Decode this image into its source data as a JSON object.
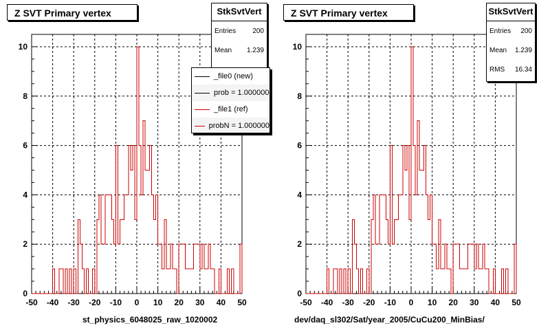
{
  "chart_data": [
    {
      "type": "histogram",
      "title": "Z SVT Primary vertex",
      "xlabel": "st_physics_6048025_raw_1020002",
      "ylabel": "",
      "xlim": [
        -50,
        50
      ],
      "ylim": [
        0,
        10.5
      ],
      "xticks": [
        -50,
        -40,
        -30,
        -20,
        -10,
        0,
        10,
        20,
        30,
        40,
        50
      ],
      "yticks": [
        0,
        2,
        4,
        6,
        8,
        10
      ],
      "grid": true,
      "bin_width": 1,
      "series": [
        {
          "name": "_file0 (new)",
          "color": "#000000",
          "values": [
            0,
            0,
            0,
            0,
            0,
            0,
            0,
            0,
            0,
            0,
            1,
            0,
            0,
            1,
            1,
            0,
            1,
            0,
            1,
            0,
            1,
            0,
            3,
            2,
            1,
            0,
            1,
            0,
            0,
            1,
            0,
            3,
            4,
            2,
            2,
            4,
            4,
            4,
            3,
            2,
            6,
            2,
            3,
            3,
            4,
            4,
            6,
            5,
            6,
            3,
            10,
            6,
            4,
            7,
            5,
            5,
            6,
            4,
            3,
            4,
            2,
            2,
            1,
            3,
            1,
            1,
            2,
            1,
            1,
            0,
            2,
            2,
            2,
            1,
            1,
            1,
            1,
            2,
            2,
            2,
            1,
            2,
            1,
            1,
            2,
            1,
            1,
            0,
            0,
            1,
            0,
            0,
            0,
            1,
            0,
            1,
            0,
            0,
            0,
            2
          ]
        },
        {
          "name": "_file1 (ref)",
          "color": "#cc0000",
          "values": [
            0,
            0,
            0,
            0,
            0,
            0,
            0,
            0,
            0,
            0,
            1,
            0,
            0,
            1,
            1,
            0,
            1,
            0,
            1,
            0,
            1,
            0,
            3,
            2,
            1,
            0,
            1,
            0,
            0,
            1,
            0,
            3,
            4,
            2,
            2,
            4,
            4,
            4,
            3,
            2,
            6,
            2,
            3,
            3,
            4,
            4,
            6,
            5,
            6,
            3,
            10,
            6,
            4,
            7,
            5,
            5,
            6,
            4,
            3,
            4,
            2,
            2,
            1,
            3,
            1,
            1,
            2,
            1,
            1,
            0,
            2,
            2,
            2,
            1,
            1,
            1,
            1,
            2,
            2,
            2,
            1,
            2,
            1,
            1,
            2,
            1,
            1,
            0,
            0,
            1,
            0,
            0,
            0,
            1,
            0,
            1,
            0,
            0,
            0,
            2
          ]
        }
      ],
      "stats": {
        "title": "StkSvtVert",
        "entries_label": "Entries",
        "entries": "200",
        "mean_label": "Mean",
        "mean": "1.239"
      },
      "legend": [
        {
          "label": "_file0 (new)",
          "color": "#000000"
        },
        {
          "label": "prob = 1.000000",
          "color": "#000000"
        },
        {
          "label": "_file1 (ref)",
          "color": "#cc0000"
        },
        {
          "label": "probN = 1.000000",
          "color": "#cc0000"
        }
      ]
    },
    {
      "type": "histogram",
      "title": "Z SVT Primary vertex",
      "xlabel": "dev/daq_sl302/Sat/year_2005/CuCu200_MinBias/",
      "ylabel": "",
      "xlim": [
        -50,
        50
      ],
      "ylim": [
        0,
        10.5
      ],
      "xticks": [
        -50,
        -40,
        -30,
        -20,
        -10,
        0,
        10,
        20,
        30,
        40,
        50
      ],
      "yticks": [
        0,
        2,
        4,
        6,
        8,
        10
      ],
      "grid": true,
      "bin_width": 1,
      "series": [
        {
          "name": "",
          "color": "#cc0000",
          "values": [
            0,
            0,
            0,
            0,
            0,
            0,
            0,
            0,
            0,
            0,
            1,
            0,
            0,
            1,
            1,
            0,
            1,
            0,
            1,
            0,
            1,
            0,
            3,
            2,
            1,
            0,
            1,
            0,
            0,
            1,
            0,
            3,
            4,
            2,
            2,
            4,
            4,
            4,
            3,
            2,
            6,
            2,
            3,
            3,
            4,
            4,
            6,
            5,
            6,
            3,
            10,
            6,
            4,
            7,
            5,
            5,
            6,
            4,
            3,
            4,
            2,
            2,
            1,
            3,
            1,
            1,
            2,
            1,
            1,
            0,
            2,
            2,
            2,
            1,
            1,
            1,
            1,
            2,
            2,
            2,
            1,
            2,
            1,
            1,
            2,
            1,
            1,
            0,
            0,
            1,
            0,
            0,
            0,
            1,
            0,
            1,
            0,
            0,
            0,
            2
          ]
        }
      ],
      "stats": {
        "title": "StkSvtVert",
        "entries_label": "Entries",
        "entries": "200",
        "mean_label": "Mean",
        "mean": "1.239",
        "rms_label": "RMS",
        "rms": "16.34"
      }
    }
  ]
}
